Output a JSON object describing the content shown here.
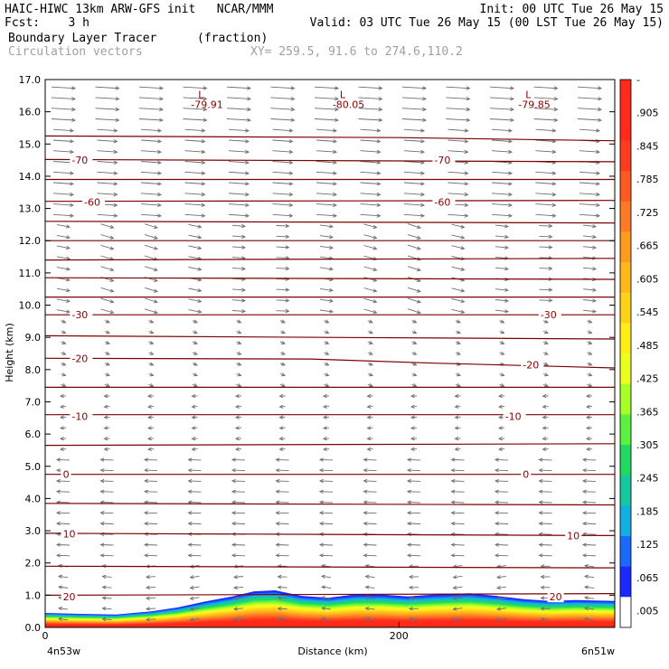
{
  "header": {
    "line1_left": "HAIC-HIWC 13km ARW-GFS init   NCAR/MMM",
    "line1_right": "Init: 00 UTC Tue 26 May 15",
    "line2_left": "Fcst:    3 h",
    "line2_right": "Valid: 03 UTC Tue 26 May 15 (00 LST Tue 26 May 15)",
    "line3_field": "Boundary Layer Tracer",
    "line3_units": "(fraction)",
    "line4_field": "Circulation vectors",
    "line4_xy": "XY= 259.5, 91.6 to 274.6,110.2"
  },
  "chart_data": {
    "type": "area",
    "xlabel": "Distance (km)",
    "ylabel": "Height (km)",
    "ylim": [
      0,
      17
    ],
    "y_ticks": [
      "0.0",
      "1.0",
      "2.0",
      "3.0",
      "4.0",
      "5.0",
      "6.0",
      "7.0",
      "8.0",
      "9.0",
      "10.0",
      "11.0",
      "12.0",
      "13.0",
      "14.0",
      "15.0",
      "16.0",
      "17.0"
    ],
    "x_ticks": [
      {
        "value": 0,
        "label": "0"
      },
      {
        "value": 200,
        "label": "200"
      }
    ],
    "x_end_labels": {
      "left": "4n53w",
      "right": "6n51w"
    },
    "xlim": [
      0,
      322
    ],
    "grid": false,
    "colorbar": {
      "labels": [
        "-",
        ".905",
        ".845",
        ".785",
        ".725",
        ".665",
        ".605",
        ".545",
        ".485",
        ".425",
        ".365",
        ".305",
        ".245",
        ".185",
        ".125",
        ".065",
        ".005"
      ],
      "colors": [
        "#ff2a1a",
        "#ff2a1a",
        "#ff3c1e",
        "#ff5a22",
        "#ff7a26",
        "#ff9a20",
        "#ffb81a",
        "#ffd21a",
        "#ffee1a",
        "#eaff20",
        "#a8ff28",
        "#5cf040",
        "#22d860",
        "#14c8a0",
        "#12b0e0",
        "#1a6aff",
        "#1a2aff",
        "#ffffff"
      ]
    },
    "tracer_layer": {
      "x": [
        0,
        20,
        40,
        60,
        75,
        90,
        105,
        118,
        130,
        145,
        160,
        175,
        190,
        205,
        220,
        240,
        255,
        270,
        285,
        300,
        322
      ],
      "top_km": [
        0.45,
        0.42,
        0.4,
        0.5,
        0.62,
        0.8,
        0.95,
        1.12,
        1.15,
        0.98,
        0.92,
        1.02,
        1.02,
        0.96,
        1.02,
        1.06,
        0.98,
        0.88,
        0.82,
        0.85,
        0.82
      ]
    },
    "contours": [
      {
        "value": "20",
        "label_x": 10,
        "label_y": 0.95,
        "pts": [
          [
            0,
            1.0
          ],
          [
            322,
            1.05
          ]
        ]
      },
      {
        "value": "",
        "label_x": null,
        "label_y": null,
        "pts": [
          [
            0,
            1.9
          ],
          [
            322,
            1.85
          ]
        ]
      },
      {
        "value": "10",
        "label_x": 10,
        "label_y": 2.9,
        "pts": [
          [
            0,
            2.92
          ],
          [
            322,
            2.85
          ]
        ]
      },
      {
        "value": "",
        "label_x": null,
        "label_y": null,
        "pts": [
          [
            0,
            3.85
          ],
          [
            322,
            3.8
          ]
        ]
      },
      {
        "value": "0",
        "label_x": 10,
        "label_y": 4.75,
        "pts": [
          [
            0,
            4.75
          ],
          [
            322,
            4.75
          ]
        ]
      },
      {
        "value": "",
        "label_x": null,
        "label_y": null,
        "pts": [
          [
            0,
            5.65
          ],
          [
            322,
            5.7
          ]
        ]
      },
      {
        "value": "-10",
        "label_x": 15,
        "label_y": 6.55,
        "pts": [
          [
            0,
            6.6
          ],
          [
            322,
            6.6
          ]
        ]
      },
      {
        "value": "",
        "label_x": null,
        "label_y": null,
        "pts": [
          [
            0,
            7.45
          ],
          [
            322,
            7.45
          ]
        ]
      },
      {
        "value": "-20",
        "label_x": 15,
        "label_y": 8.35,
        "pts": [
          [
            0,
            8.35
          ],
          [
            150,
            8.33
          ],
          [
            220,
            8.2
          ],
          [
            322,
            8.05
          ]
        ]
      },
      {
        "value": "",
        "label_x": null,
        "label_y": null,
        "pts": [
          [
            0,
            9.05
          ],
          [
            322,
            8.95
          ]
        ]
      },
      {
        "value": "-30",
        "label_x": 15,
        "label_y": 9.7,
        "pts": [
          [
            0,
            9.7
          ],
          [
            322,
            9.7
          ]
        ]
      },
      {
        "value": "",
        "label_x": null,
        "label_y": null,
        "pts": [
          [
            0,
            10.25
          ],
          [
            322,
            10.25
          ]
        ]
      },
      {
        "value": "",
        "label_x": null,
        "label_y": null,
        "pts": [
          [
            0,
            10.85
          ],
          [
            322,
            10.8
          ]
        ]
      },
      {
        "value": "",
        "label_x": null,
        "label_y": null,
        "pts": [
          [
            0,
            11.4
          ],
          [
            322,
            11.45
          ]
        ]
      },
      {
        "value": "",
        "label_x": null,
        "label_y": null,
        "pts": [
          [
            0,
            12.0
          ],
          [
            322,
            12.0
          ]
        ]
      },
      {
        "value": "",
        "label_x": null,
        "label_y": null,
        "pts": [
          [
            0,
            12.6
          ],
          [
            322,
            12.55
          ]
        ]
      },
      {
        "value": "-60",
        "label_x": 22,
        "label_y": 13.2,
        "pts": [
          [
            0,
            13.22
          ],
          [
            322,
            13.25
          ]
        ]
      },
      {
        "value": "",
        "label_x": null,
        "label_y": null,
        "pts": [
          [
            0,
            13.9
          ],
          [
            322,
            13.9
          ]
        ]
      },
      {
        "value": "-70",
        "label_x": 15,
        "label_y": 14.5,
        "pts": [
          [
            0,
            14.52
          ],
          [
            322,
            14.45
          ]
        ]
      },
      {
        "value": "",
        "label_x": null,
        "label_y": null,
        "pts": [
          [
            0,
            15.25
          ],
          [
            200,
            15.2
          ],
          [
            322,
            15.1
          ]
        ]
      }
    ],
    "contour_labels_right": [
      {
        "text": "-70",
        "x": 220,
        "y": 14.5
      },
      {
        "text": "-60",
        "x": 220,
        "y": 13.2
      },
      {
        "text": "-30",
        "x": 280,
        "y": 9.7
      },
      {
        "text": "-20",
        "x": 270,
        "y": 8.15
      },
      {
        "text": "-10",
        "x": 260,
        "y": 6.55
      },
      {
        "text": "0",
        "x": 270,
        "y": 4.75
      },
      {
        "text": "10",
        "x": 295,
        "y": 2.85
      },
      {
        "text": "20",
        "x": 285,
        "y": 0.95
      }
    ],
    "lows": [
      {
        "mark": "L",
        "value": "-79.91",
        "x": 85,
        "y": 16.65
      },
      {
        "mark": "L",
        "value": "-80.05",
        "x": 165,
        "y": 16.65
      },
      {
        "mark": "L",
        "value": "-79.85",
        "x": 270,
        "y": 16.65
      }
    ]
  }
}
